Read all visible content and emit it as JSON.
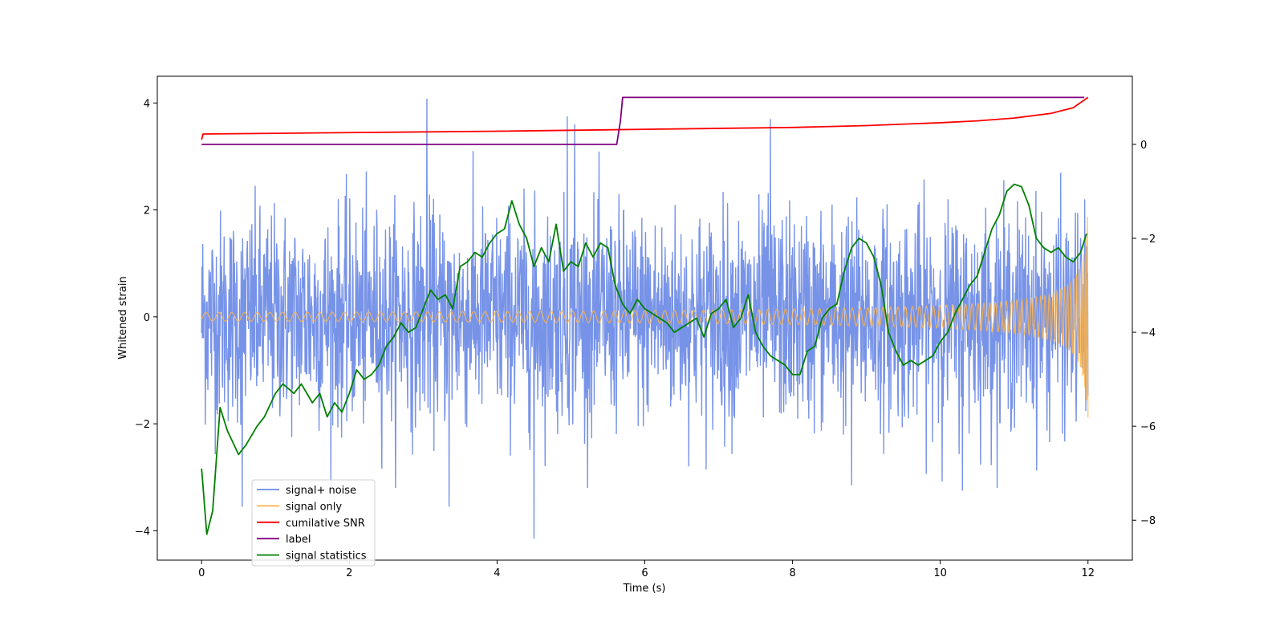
{
  "chart_data": {
    "type": "line",
    "title": "",
    "xlabel": "Time (s)",
    "ylabel": "Whitened strain",
    "xlim": [
      -0.6,
      12.6
    ],
    "ylim": [
      -4.55,
      4.5
    ],
    "y2lim": [
      -8.85,
      1.45
    ],
    "x_ticks": [
      0,
      2,
      4,
      6,
      8,
      10,
      12
    ],
    "y_ticks": [
      -4,
      -2,
      0,
      2,
      4
    ],
    "y2_ticks": [
      -8,
      -6,
      -4,
      -2,
      0
    ],
    "grid": false,
    "legend_position": "lower-left",
    "colors": {
      "noise": "#6b8ae6",
      "signal": "#ffb347",
      "snr": "#ff0000",
      "label": "#800080",
      "stats": "#008000"
    },
    "series": [
      {
        "name": "signal+ noise",
        "axis": "left",
        "description": "whitened strain, noise amplitude ~1, outliers to ~4.1 / -4.2",
        "x_range": [
          0,
          12
        ],
        "peaks": [
          {
            "x": 3.05,
            "y": 4.08
          },
          {
            "x": 4.5,
            "y": -4.15
          },
          {
            "x": 4.95,
            "y": 3.75
          },
          {
            "x": 5.05,
            "y": 3.6
          },
          {
            "x": 7.7,
            "y": 3.7
          },
          {
            "x": 3.35,
            "y": -3.55
          },
          {
            "x": 0.55,
            "y": -3.55
          },
          {
            "x": 8.8,
            "y": -3.15
          },
          {
            "x": 10.3,
            "y": -3.25
          }
        ]
      },
      {
        "name": "signal only",
        "axis": "left",
        "description": "chirp, amplitude grows from ~0.08 to ~2.2 at 12 s",
        "x_range": [
          0,
          12
        ],
        "amplitude_start": 0.08,
        "amplitude_end": 2.2
      },
      {
        "name": "cumilative SNR",
        "axis": "right",
        "x": [
          0,
          0.02,
          2,
          4,
          6,
          8,
          9,
          10,
          10.5,
          11,
          11.5,
          11.8,
          12
        ],
        "values": [
          0.1,
          0.22,
          0.25,
          0.28,
          0.32,
          0.36,
          0.4,
          0.46,
          0.5,
          0.56,
          0.66,
          0.78,
          1.0
        ]
      },
      {
        "name": "label",
        "axis": "right",
        "x": [
          0,
          5.62,
          5.67,
          5.7,
          11.95
        ],
        "values": [
          0,
          0,
          0.5,
          1.0,
          1.0
        ]
      },
      {
        "name": "signal statistics",
        "axis": "right",
        "x": [
          0,
          0.07,
          0.15,
          0.25,
          0.35,
          0.5,
          0.6,
          0.75,
          0.85,
          1.0,
          1.1,
          1.25,
          1.35,
          1.5,
          1.6,
          1.7,
          1.8,
          1.9,
          2.0,
          2.1,
          2.2,
          2.3,
          2.4,
          2.5,
          2.6,
          2.7,
          2.8,
          2.9,
          3.0,
          3.1,
          3.2,
          3.3,
          3.4,
          3.5,
          3.6,
          3.7,
          3.8,
          3.9,
          4.0,
          4.1,
          4.2,
          4.3,
          4.4,
          4.5,
          4.6,
          4.7,
          4.8,
          4.9,
          5.0,
          5.1,
          5.2,
          5.3,
          5.4,
          5.5,
          5.6,
          5.7,
          5.8,
          5.9,
          6.0,
          6.1,
          6.2,
          6.3,
          6.4,
          6.5,
          6.6,
          6.7,
          6.8,
          6.9,
          7.0,
          7.1,
          7.2,
          7.3,
          7.4,
          7.5,
          7.6,
          7.7,
          7.8,
          7.9,
          8.0,
          8.1,
          8.2,
          8.3,
          8.4,
          8.5,
          8.6,
          8.7,
          8.8,
          8.9,
          9.0,
          9.1,
          9.2,
          9.3,
          9.4,
          9.5,
          9.6,
          9.7,
          9.8,
          9.9,
          10.0,
          10.1,
          10.2,
          10.3,
          10.4,
          10.5,
          10.6,
          10.7,
          10.8,
          10.9,
          11.0,
          11.1,
          11.2,
          11.3,
          11.4,
          11.5,
          11.6,
          11.7,
          11.8,
          11.9,
          11.98
        ],
        "values": [
          -6.9,
          -8.3,
          -7.8,
          -5.6,
          -6.1,
          -6.6,
          -6.4,
          -6.0,
          -5.8,
          -5.3,
          -5.1,
          -5.3,
          -5.1,
          -5.5,
          -5.3,
          -5.8,
          -5.5,
          -5.7,
          -5.3,
          -4.8,
          -5.0,
          -4.9,
          -4.7,
          -4.3,
          -4.1,
          -3.8,
          -4.0,
          -3.9,
          -3.5,
          -3.1,
          -3.3,
          -3.2,
          -3.5,
          -2.6,
          -2.5,
          -2.3,
          -2.4,
          -2.1,
          -1.9,
          -1.8,
          -1.2,
          -1.7,
          -2.0,
          -2.6,
          -2.2,
          -2.5,
          -1.7,
          -2.7,
          -2.5,
          -2.6,
          -2.1,
          -2.4,
          -2.1,
          -2.2,
          -3.0,
          -3.4,
          -3.6,
          -3.3,
          -3.5,
          -3.6,
          -3.7,
          -3.8,
          -4.0,
          -3.9,
          -3.8,
          -3.7,
          -4.1,
          -3.6,
          -3.5,
          -3.3,
          -3.9,
          -3.7,
          -3.2,
          -4.0,
          -4.3,
          -4.5,
          -4.6,
          -4.7,
          -4.9,
          -4.9,
          -4.4,
          -4.3,
          -3.7,
          -3.5,
          -3.4,
          -2.7,
          -2.2,
          -2.0,
          -2.1,
          -2.4,
          -3.0,
          -4.0,
          -4.4,
          -4.7,
          -4.6,
          -4.7,
          -4.6,
          -4.5,
          -4.2,
          -4.0,
          -3.6,
          -3.3,
          -3.0,
          -2.8,
          -2.3,
          -1.8,
          -1.5,
          -1.0,
          -0.85,
          -0.9,
          -1.3,
          -2.0,
          -2.2,
          -2.3,
          -2.2,
          -2.4,
          -2.5,
          -2.3,
          -1.9
        ]
      }
    ],
    "legend": [
      "signal+ noise",
      "signal only",
      "cumilative SNR",
      "label",
      "signal statistics"
    ]
  }
}
